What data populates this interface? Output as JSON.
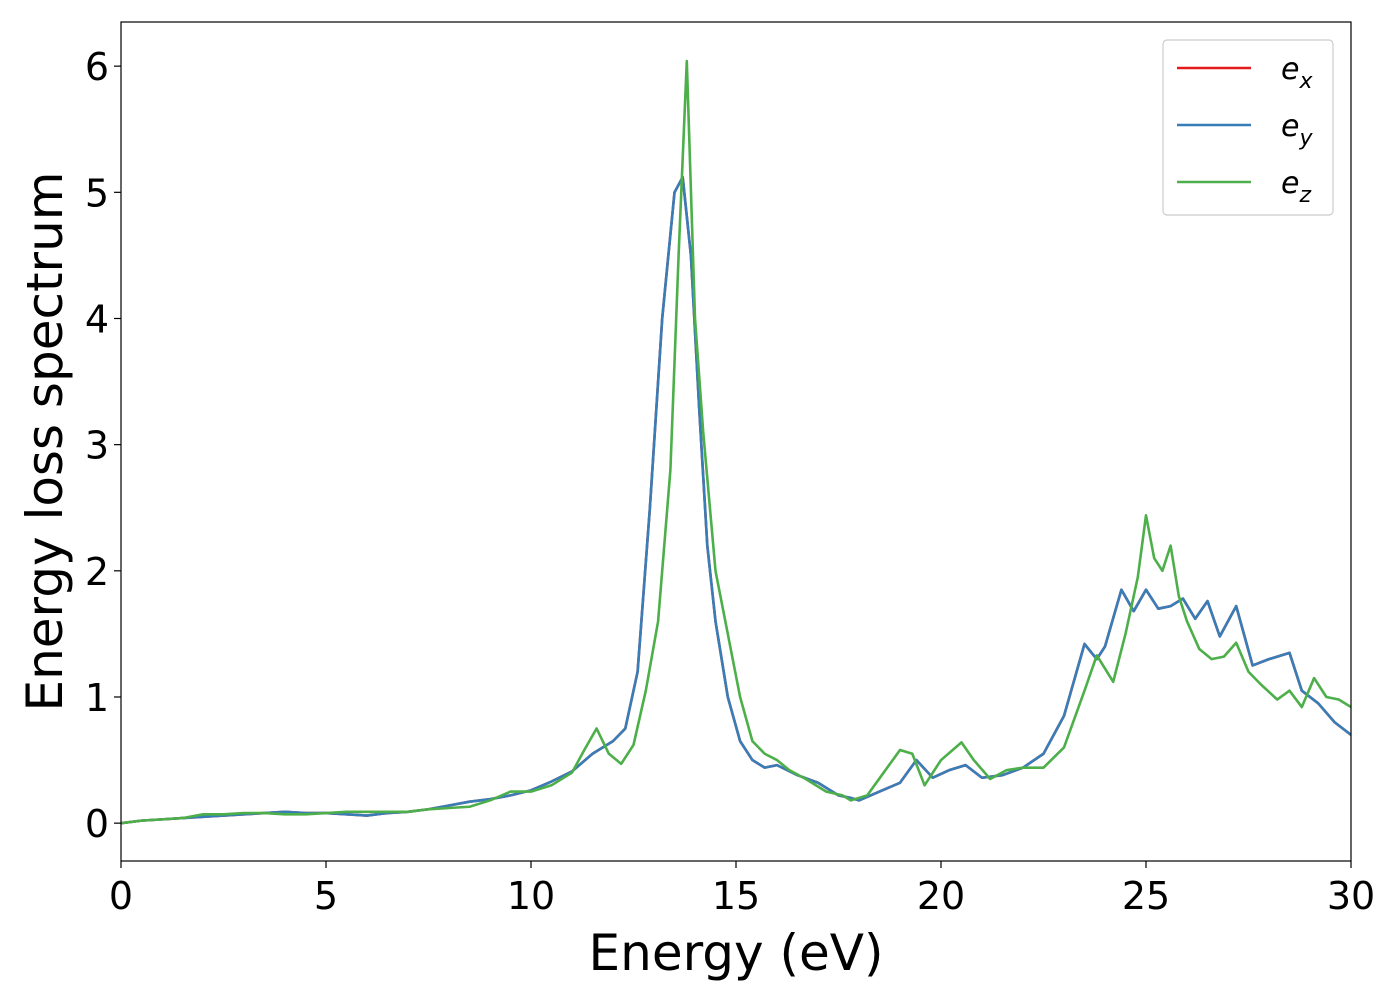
{
  "chart_data": {
    "type": "line",
    "xlabel": "Energy (eV)",
    "ylabel": "Energy loss spectrum",
    "xlim": [
      0,
      30
    ],
    "ylim": [
      -0.3,
      6.35
    ],
    "xticks": [
      0,
      5,
      10,
      15,
      20,
      25,
      30
    ],
    "yticks": [
      0,
      1,
      2,
      3,
      4,
      5,
      6
    ],
    "grid": false,
    "legend_position": "top-right",
    "series": [
      {
        "name": "e_x",
        "label_base": "e",
        "label_sub": "x",
        "color": "#e41a1c",
        "x": [
          0,
          0.5,
          1,
          1.5,
          2,
          2.5,
          3,
          3.5,
          4,
          4.5,
          5,
          5.5,
          6,
          6.5,
          7,
          7.5,
          8,
          8.5,
          9,
          9.5,
          10,
          10.5,
          11,
          11.5,
          12,
          12.3,
          12.6,
          12.9,
          13.2,
          13.5,
          13.7,
          13.9,
          14.1,
          14.3,
          14.5,
          14.8,
          15.1,
          15.4,
          15.7,
          16,
          16.5,
          17,
          17.5,
          17.8,
          18,
          18.5,
          19,
          19.4,
          19.8,
          20.2,
          20.6,
          21,
          21.5,
          22,
          22.5,
          23,
          23.5,
          23.8,
          24,
          24.4,
          24.7,
          25,
          25.3,
          25.6,
          25.9,
          26.2,
          26.5,
          26.8,
          27.2,
          27.6,
          28,
          28.5,
          28.8,
          29.2,
          29.6,
          30
        ],
        "y": [
          0.0,
          0.02,
          0.03,
          0.04,
          0.05,
          0.06,
          0.07,
          0.08,
          0.09,
          0.08,
          0.08,
          0.07,
          0.06,
          0.08,
          0.09,
          0.11,
          0.14,
          0.17,
          0.19,
          0.22,
          0.26,
          0.33,
          0.41,
          0.55,
          0.65,
          0.75,
          1.2,
          2.5,
          4.0,
          5.0,
          5.12,
          4.5,
          3.3,
          2.2,
          1.6,
          1.0,
          0.65,
          0.5,
          0.44,
          0.46,
          0.38,
          0.32,
          0.22,
          0.2,
          0.18,
          0.25,
          0.32,
          0.5,
          0.36,
          0.42,
          0.46,
          0.36,
          0.38,
          0.44,
          0.55,
          0.85,
          1.42,
          1.3,
          1.4,
          1.85,
          1.68,
          1.85,
          1.7,
          1.72,
          1.78,
          1.62,
          1.76,
          1.48,
          1.72,
          1.25,
          1.3,
          1.35,
          1.05,
          0.95,
          0.8,
          0.7
        ]
      },
      {
        "name": "e_y",
        "label_base": "e",
        "label_sub": "y",
        "color": "#377eb8",
        "x": [
          0,
          0.5,
          1,
          1.5,
          2,
          2.5,
          3,
          3.5,
          4,
          4.5,
          5,
          5.5,
          6,
          6.5,
          7,
          7.5,
          8,
          8.5,
          9,
          9.5,
          10,
          10.5,
          11,
          11.5,
          12,
          12.3,
          12.6,
          12.9,
          13.2,
          13.5,
          13.7,
          13.9,
          14.1,
          14.3,
          14.5,
          14.8,
          15.1,
          15.4,
          15.7,
          16,
          16.5,
          17,
          17.5,
          17.8,
          18,
          18.5,
          19,
          19.4,
          19.8,
          20.2,
          20.6,
          21,
          21.5,
          22,
          22.5,
          23,
          23.5,
          23.8,
          24,
          24.4,
          24.7,
          25,
          25.3,
          25.6,
          25.9,
          26.2,
          26.5,
          26.8,
          27.2,
          27.6,
          28,
          28.5,
          28.8,
          29.2,
          29.6,
          30
        ],
        "y": [
          0.0,
          0.02,
          0.03,
          0.04,
          0.05,
          0.06,
          0.07,
          0.08,
          0.09,
          0.08,
          0.08,
          0.07,
          0.06,
          0.08,
          0.09,
          0.11,
          0.14,
          0.17,
          0.19,
          0.22,
          0.26,
          0.33,
          0.41,
          0.55,
          0.65,
          0.75,
          1.2,
          2.5,
          4.0,
          5.0,
          5.12,
          4.5,
          3.3,
          2.2,
          1.6,
          1.0,
          0.65,
          0.5,
          0.44,
          0.46,
          0.38,
          0.32,
          0.22,
          0.2,
          0.18,
          0.25,
          0.32,
          0.5,
          0.36,
          0.42,
          0.46,
          0.36,
          0.38,
          0.44,
          0.55,
          0.85,
          1.42,
          1.3,
          1.4,
          1.85,
          1.68,
          1.85,
          1.7,
          1.72,
          1.78,
          1.62,
          1.76,
          1.48,
          1.72,
          1.25,
          1.3,
          1.35,
          1.05,
          0.95,
          0.8,
          0.7
        ]
      },
      {
        "name": "e_z",
        "label_base": "e",
        "label_sub": "z",
        "color": "#4daf4a",
        "x": [
          0,
          0.5,
          1,
          1.5,
          2,
          2.5,
          3,
          3.5,
          4,
          4.5,
          5,
          5.5,
          6,
          6.5,
          7,
          7.5,
          8,
          8.5,
          9,
          9.5,
          10,
          10.5,
          11,
          11.3,
          11.6,
          11.9,
          12.2,
          12.5,
          12.8,
          13.1,
          13.4,
          13.6,
          13.8,
          14.0,
          14.2,
          14.5,
          14.8,
          15.1,
          15.4,
          15.7,
          16,
          16.3,
          16.7,
          17.2,
          17.6,
          17.8,
          18.2,
          18.6,
          19,
          19.3,
          19.6,
          20,
          20.5,
          20.8,
          21.2,
          21.6,
          22,
          22.5,
          23,
          23.5,
          23.8,
          24.2,
          24.5,
          24.8,
          25,
          25.2,
          25.4,
          25.6,
          25.8,
          26,
          26.3,
          26.6,
          26.9,
          27.2,
          27.5,
          27.8,
          28.2,
          28.5,
          28.8,
          29.1,
          29.4,
          29.7,
          30
        ],
        "y": [
          0.0,
          0.02,
          0.03,
          0.04,
          0.07,
          0.07,
          0.08,
          0.08,
          0.07,
          0.07,
          0.08,
          0.09,
          0.09,
          0.09,
          0.09,
          0.11,
          0.12,
          0.13,
          0.18,
          0.25,
          0.25,
          0.3,
          0.4,
          0.58,
          0.75,
          0.55,
          0.47,
          0.62,
          1.05,
          1.6,
          2.8,
          4.5,
          6.04,
          4.0,
          3.1,
          2.0,
          1.5,
          1.0,
          0.65,
          0.55,
          0.5,
          0.42,
          0.35,
          0.25,
          0.22,
          0.18,
          0.22,
          0.4,
          0.58,
          0.55,
          0.3,
          0.5,
          0.64,
          0.5,
          0.35,
          0.42,
          0.44,
          0.44,
          0.6,
          1.05,
          1.33,
          1.12,
          1.5,
          1.95,
          2.44,
          2.1,
          2.0,
          2.2,
          1.8,
          1.6,
          1.38,
          1.3,
          1.32,
          1.43,
          1.2,
          1.1,
          0.98,
          1.05,
          0.92,
          1.15,
          1.0,
          0.98,
          0.92
        ]
      }
    ]
  }
}
